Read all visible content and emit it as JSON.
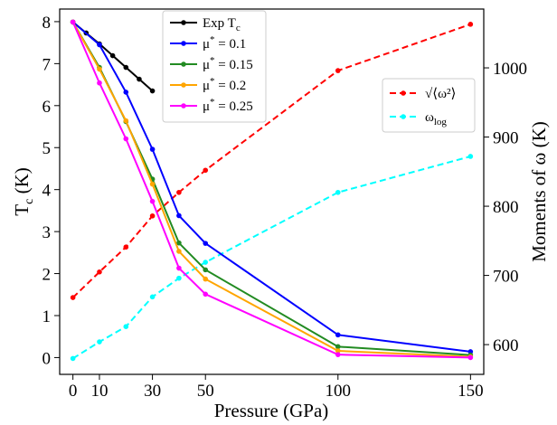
{
  "chart_data": {
    "type": "line",
    "xlabel": "Pressure (GPa)",
    "ylabel_left_main": "T",
    "ylabel_left_sub": "c",
    "ylabel_left_unit": " (K)",
    "ylabel_right": "Moments of ω (K)",
    "x_ticks": [
      "0",
      "10",
      "30",
      "50",
      "100",
      "150"
    ],
    "y_left_ticks": [
      "0",
      "1",
      "2",
      "3",
      "4",
      "5",
      "6",
      "7",
      "8"
    ],
    "y_right_ticks": [
      "600",
      "700",
      "800",
      "900",
      "1000"
    ],
    "xlim": [
      -5,
      155
    ],
    "ylim_left": [
      -0.4,
      8.3
    ],
    "ylim_right": [
      557,
      1085
    ],
    "left_series": [
      {
        "name_main": "Exp T",
        "name_sub": "c",
        "name_tail": "",
        "color": "#000000",
        "x": [
          0,
          5,
          10,
          15,
          20,
          25,
          30
        ],
        "y": [
          7.99,
          7.73,
          7.47,
          7.19,
          6.91,
          6.63,
          6.35
        ]
      },
      {
        "name_main": "μ",
        "name_sup": "*",
        "name_tail": " = 0.1",
        "color": "#0000ff",
        "x": [
          0,
          10,
          20,
          30,
          40,
          50,
          100,
          150
        ],
        "y": [
          7.99,
          7.45,
          6.32,
          4.96,
          3.38,
          2.72,
          0.54,
          0.14
        ]
      },
      {
        "name_main": "μ",
        "name_sup": "*",
        "name_tail": " = 0.15",
        "color": "#228b22",
        "x": [
          0,
          10,
          20,
          30,
          40,
          50,
          100,
          150
        ],
        "y": [
          7.99,
          6.91,
          5.62,
          4.25,
          2.73,
          2.09,
          0.26,
          0.06
        ]
      },
      {
        "name_main": "μ",
        "name_sup": "*",
        "name_tail": " = 0.2",
        "color": "#ffa500",
        "x": [
          0,
          10,
          20,
          30,
          40,
          50,
          100,
          150
        ],
        "y": [
          7.99,
          6.87,
          5.64,
          4.13,
          2.53,
          1.87,
          0.16,
          0.02
        ]
      },
      {
        "name_main": "μ",
        "name_sup": "*",
        "name_tail": " = 0.25",
        "color": "#ff00ff",
        "x": [
          0,
          10,
          20,
          30,
          40,
          50,
          100,
          150
        ],
        "y": [
          7.99,
          6.54,
          5.21,
          3.72,
          2.13,
          1.51,
          0.07,
          0.0
        ]
      }
    ],
    "right_series": [
      {
        "name": "√⟨ω²⟩",
        "color": "#ff0000",
        "x": [
          0,
          10,
          20,
          30,
          40,
          50,
          100,
          150
        ],
        "y": [
          668,
          705,
          741,
          786,
          820,
          852,
          996,
          1063
        ]
      },
      {
        "name": "ω",
        "name_sub": "log",
        "color": "#00ffff",
        "x": [
          0,
          10,
          20,
          30,
          40,
          50,
          100,
          150
        ],
        "y": [
          580,
          604,
          626,
          669,
          696,
          719,
          820,
          872
        ]
      }
    ],
    "legend_left_position": "top-center",
    "legend_right_position": "upper-right",
    "grid": false
  }
}
